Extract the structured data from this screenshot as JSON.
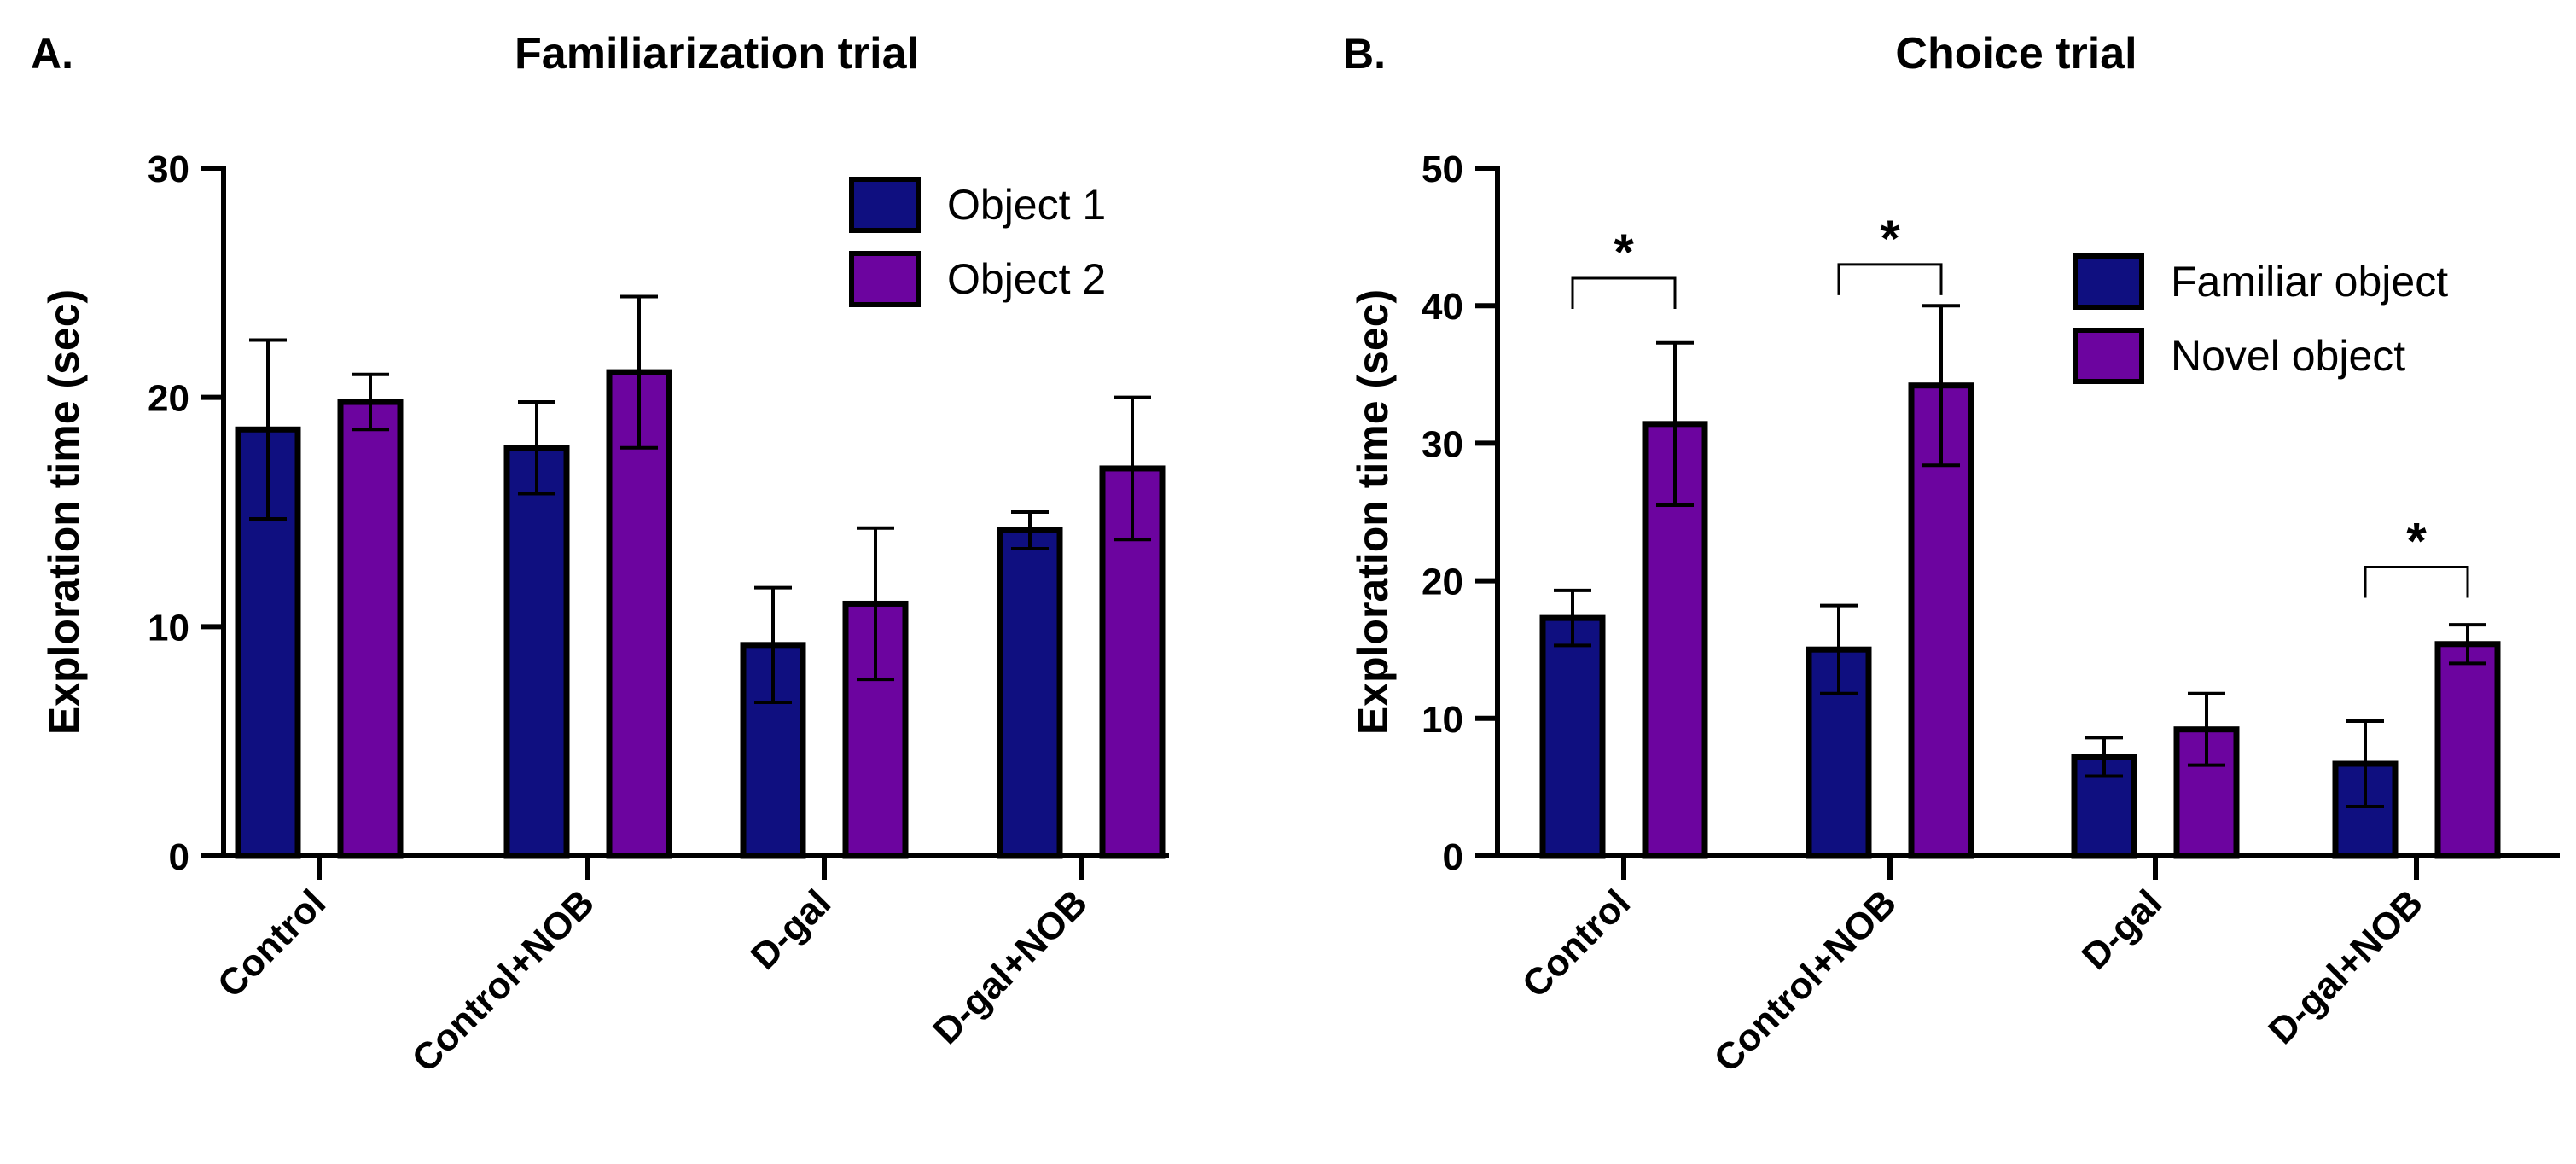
{
  "chart_data": [
    {
      "panel_label": "A.",
      "type": "bar",
      "title": "Familiarization trial",
      "xlabel": "",
      "ylabel": "Exploration time (sec)",
      "ylim": [
        0,
        30
      ],
      "yticks": [
        0,
        10,
        20,
        30
      ],
      "categories": [
        "Control",
        "Control+NOB",
        "D-gal",
        "D-gal+NOB"
      ],
      "series": [
        {
          "name": "Object 1",
          "color": "#0f0f80",
          "values": [
            18.6,
            17.8,
            9.2,
            14.2
          ],
          "errors": [
            3.9,
            2.0,
            2.5,
            0.8
          ]
        },
        {
          "name": "Object 2",
          "color": "#6c049f",
          "values": [
            19.8,
            21.1,
            11.0,
            16.9
          ],
          "errors": [
            1.2,
            3.3,
            3.3,
            3.1
          ]
        }
      ],
      "significance": [],
      "legend_position": "top-right"
    },
    {
      "panel_label": "B.",
      "type": "bar",
      "title": "Choice trial",
      "xlabel": "",
      "ylabel": "Exploration time (sec)",
      "ylim": [
        0,
        50
      ],
      "yticks": [
        0,
        10,
        20,
        30,
        40,
        50
      ],
      "categories": [
        "Control",
        "Control+NOB",
        "D-gal",
        "D-gal+NOB"
      ],
      "series": [
        {
          "name": "Familiar object",
          "color": "#0f0f80",
          "values": [
            17.3,
            15.0,
            7.2,
            6.7
          ],
          "errors": [
            2.0,
            3.2,
            1.4,
            3.1
          ]
        },
        {
          "name": "Novel object",
          "color": "#6c049f",
          "values": [
            31.4,
            34.2,
            9.2,
            15.4
          ],
          "errors": [
            5.9,
            5.8,
            2.6,
            1.4
          ]
        }
      ],
      "significance": [
        {
          "category_index": 0,
          "label": "*",
          "bracket_y": 42
        },
        {
          "category_index": 1,
          "label": "*",
          "bracket_y": 43
        },
        {
          "category_index": 3,
          "label": "*",
          "bracket_y": 21
        }
      ],
      "legend_position": "top-right"
    }
  ]
}
